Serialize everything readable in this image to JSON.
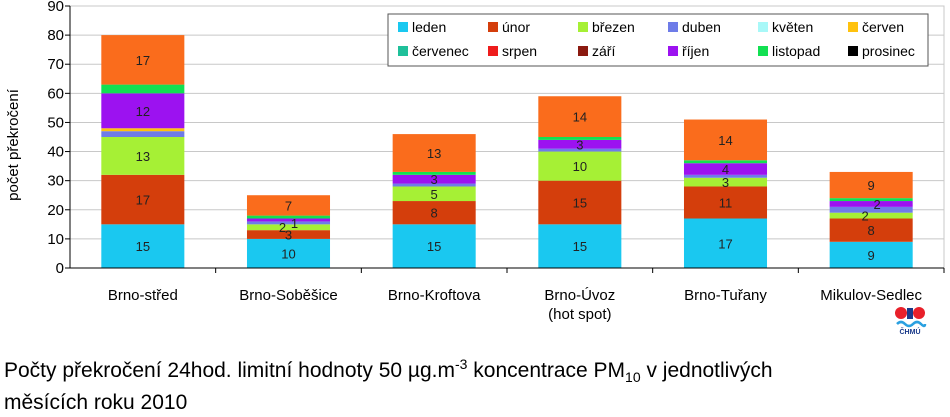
{
  "chart_data": {
    "type": "bar",
    "stacked": true,
    "ylabel": "počet překročení",
    "ylim": [
      0,
      90
    ],
    "yticks": [
      0,
      10,
      20,
      30,
      40,
      50,
      60,
      70,
      80,
      90
    ],
    "grid": true,
    "legend_position": "top-right",
    "categories": [
      [
        "Brno-střed"
      ],
      [
        "Brno-Soběšice"
      ],
      [
        "Brno-Kroftova"
      ],
      [
        "Brno-Úvoz",
        "(hot spot)"
      ],
      [
        "Brno-Tuřany"
      ],
      [
        "Mikulov-Sedlec"
      ]
    ],
    "series": [
      {
        "name": "leden",
        "color": "#1ac8f0",
        "values": [
          15,
          10,
          15,
          15,
          17,
          9
        ]
      },
      {
        "name": "únor",
        "color": "#d43e0c",
        "values": [
          17,
          3,
          8,
          15,
          11,
          8
        ]
      },
      {
        "name": "březen",
        "color": "#a6f035",
        "values": [
          13,
          2,
          5,
          10,
          3,
          2
        ]
      },
      {
        "name": "duben",
        "color": "#6e7ce8",
        "values": [
          2,
          1,
          1,
          1,
          1,
          2
        ]
      },
      {
        "name": "květen",
        "color": "#a8f8f8",
        "values": [
          0,
          0,
          0,
          0,
          0,
          0
        ]
      },
      {
        "name": "červen",
        "color": "#ffc20e",
        "values": [
          1,
          0,
          0,
          0,
          0,
          0
        ]
      },
      {
        "name": "červenec",
        "color": "#1fc09a",
        "values": [
          0,
          0,
          0,
          0,
          0,
          0
        ]
      },
      {
        "name": "srpen",
        "color": "#ee1c1c",
        "values": [
          0,
          0,
          0,
          0,
          0,
          0
        ]
      },
      {
        "name": "září",
        "color": "#8b1a10",
        "values": [
          0,
          0,
          0,
          0,
          0,
          0
        ]
      },
      {
        "name": "říjen",
        "color": "#9c12f0",
        "values": [
          12,
          1,
          3,
          3,
          4,
          2
        ]
      },
      {
        "name": "listopad",
        "color": "#12e052",
        "values": [
          3,
          1,
          1,
          1,
          1,
          1
        ]
      },
      {
        "name": "prosinec",
        "color": "#000000",
        "values": [
          0,
          0,
          0,
          0,
          0,
          0
        ]
      },
      {
        "name": "",
        "color": "#fa6c1c",
        "values": [
          17,
          7,
          13,
          14,
          14,
          9
        ]
      }
    ],
    "data_labels": [
      [
        "15",
        "17",
        "13",
        "",
        "",
        "",
        "",
        "",
        "",
        "12",
        "",
        "",
        "17"
      ],
      [
        "10",
        "3",
        "2",
        "1",
        "",
        "",
        "",
        "",
        "",
        "",
        "",
        "",
        "7"
      ],
      [
        "15",
        "8",
        "5",
        "",
        "",
        "",
        "",
        "",
        "",
        "3",
        "",
        "",
        "13"
      ],
      [
        "15",
        "15",
        "10",
        "",
        "",
        "",
        "",
        "",
        "",
        "3",
        "",
        "",
        "14"
      ],
      [
        "17",
        "11",
        "3",
        "",
        "",
        "",
        "",
        "",
        "",
        "4",
        "",
        "",
        "14"
      ],
      [
        "9",
        "8",
        "2",
        "",
        "",
        "",
        "",
        "",
        "",
        "2",
        "",
        "",
        "9"
      ]
    ]
  },
  "caption": {
    "line1_a": "Počty překročení 24hod. limitní hodnoty 50 µg.m",
    "line1_sup": "-3",
    "line1_b": " koncentrace PM",
    "line1_sub": "10",
    "line1_c": " v jednotlivých",
    "line2": "měsících roku 2010"
  },
  "logo": {
    "text": "ČHMÚ",
    "colors": [
      "#e8202a",
      "#1a3a8a",
      "#2aa0e0"
    ]
  }
}
